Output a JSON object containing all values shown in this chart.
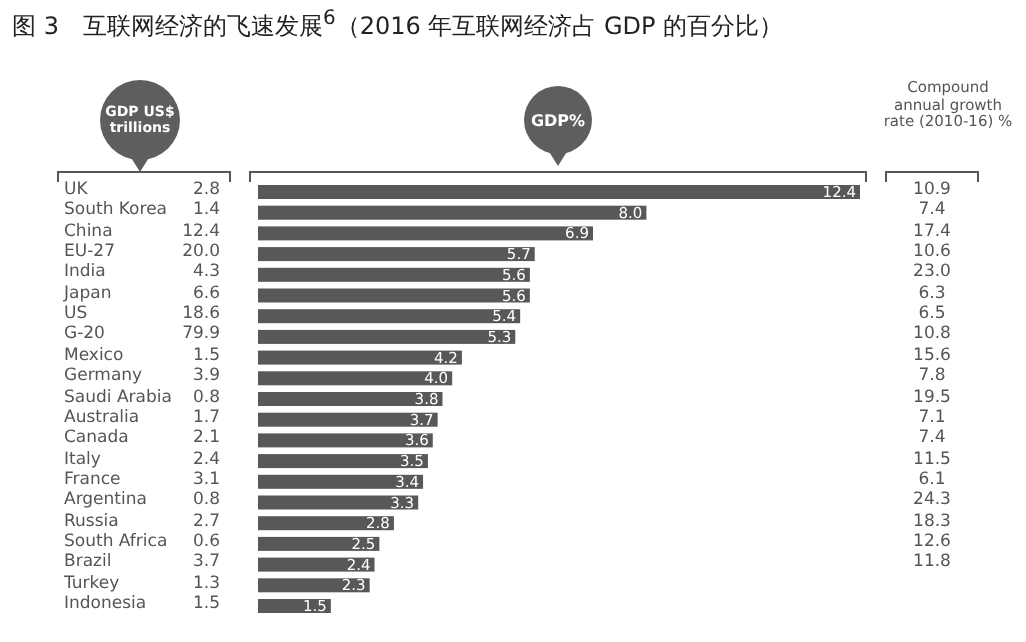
{
  "chart_data": [
    {
      "type": "other",
      "title": "图 3　互联网经济的飞速发展$^{6}$（2016 年互联网经济占 GDP 的百分比）",
      "subtitle": "GDP US$ trillions",
      "categories": [
        "UK",
        "South Korea",
        "China",
        "EU-27",
        "India",
        "Japan",
        "US",
        "G-20",
        "Mexico",
        "Germany",
        "Saudi Arabia",
        "Australia",
        "Canada",
        "Italy",
        "France",
        "Argentina",
        "Russia",
        "South Africa",
        "Brazil",
        "Turkey",
        "Indonesia"
      ],
      "values": [
        2.8,
        1.4,
        12.4,
        20.0,
        4.3,
        6.6,
        18.6,
        79.9,
        1.5,
        3.9,
        0.8,
        1.7,
        2.1,
        2.4,
        3.1,
        0.8,
        2.7,
        0.6,
        3.7,
        1.3,
        1.5
      ],
      "value_labels": [
        "2.8",
        "1.4",
        "12.4",
        "20.0",
        "4.3",
        "6.6",
        "18.6",
        "79.9",
        "1.5",
        "3.9",
        "0.8",
        "1.7",
        "2.1",
        "2.4",
        "3.1",
        "0.8",
        "2.7",
        "0.6",
        "3.7",
        "1.3",
        "1.5"
      ]
    },
    {
      "type": "bar",
      "orientation": "horizontal",
      "title": "GDP%",
      "color": "#585858",
      "categories": [
        null,
        null,
        null,
        null,
        null,
        null,
        null,
        null,
        null,
        null,
        null,
        null,
        null,
        null,
        null,
        null,
        null,
        null,
        null,
        null,
        null
      ],
      "values": [
        12.4,
        8.0,
        6.9,
        5.7,
        5.6,
        5.6,
        5.4,
        5.3,
        4.2,
        4.0,
        3.8,
        3.7,
        3.6,
        3.5,
        3.4,
        3.3,
        2.8,
        2.5,
        2.4,
        2.3,
        1.5
      ],
      "value_labels": [
        "12.4",
        "8.0",
        "6.9",
        "5.7",
        "5.6",
        "5.6",
        "5.4",
        "5.3",
        "4.2",
        "4.0",
        "3.8",
        "3.7",
        "3.6",
        "3.5",
        "3.4",
        "3.3",
        "2.8",
        "2.5",
        "2.4",
        "2.3",
        "1.5"
      ]
    },
    {
      "type": "other",
      "title": "Compound annual growth rate (2010-16) %",
      "categories": [
        null,
        null,
        null,
        null,
        null,
        null,
        null,
        null,
        null,
        null,
        null,
        null,
        null,
        null,
        null,
        null,
        null,
        null,
        null,
        null,
        null
      ],
      "values": [
        10.9,
        7.4,
        17.4,
        10.6,
        23.0,
        6.3,
        6.5,
        10.8,
        15.6,
        7.8,
        19.5,
        7.1,
        7.4,
        11.5,
        6.1,
        24.3,
        18.3,
        12.6,
        11.8,
        null,
        null
      ],
      "value_labels": [
        "10.9",
        "7.4",
        "17.4",
        "10.6",
        "23.0",
        "6.3",
        "6.5",
        "10.8",
        "15.6",
        "7.8",
        "19.5",
        "7.1",
        "7.4",
        "11.5",
        "6.1",
        "24.3",
        "18.3",
        "12.6",
        "11.8",
        null,
        null
      ]
    }
  ]
}
